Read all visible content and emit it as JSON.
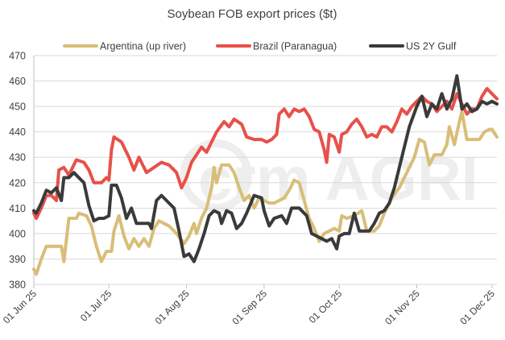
{
  "chart_data": {
    "type": "line",
    "title": "Soybean FOB export prices ($t)",
    "xlabel": "",
    "ylabel": "",
    "ylim": [
      380,
      470
    ],
    "yticks": [
      380,
      390,
      400,
      410,
      420,
      430,
      440,
      450,
      460,
      470
    ],
    "xlim": [
      "2025-06-01",
      "2025-12-03"
    ],
    "xticks": [
      {
        "date": "2025-06-01",
        "label": "01 Jun 25"
      },
      {
        "date": "2025-07-01",
        "label": "01 Jul 25"
      },
      {
        "date": "2025-08-01",
        "label": "01 Aug 25"
      },
      {
        "date": "2025-09-01",
        "label": "01 Sep 25"
      },
      {
        "date": "2025-10-01",
        "label": "01 Oct 25"
      },
      {
        "date": "2025-11-01",
        "label": "01 Nov 25"
      },
      {
        "date": "2025-12-01",
        "label": "01 Dec 25"
      }
    ],
    "grid": true,
    "legend": "top",
    "watermark": "crm AGRI",
    "series": [
      {
        "name": "Argentina (up river)",
        "color": "#D8BE78",
        "points": [
          [
            "2025-06-01",
            386
          ],
          [
            "2025-06-02",
            384
          ],
          [
            "2025-06-04",
            390
          ],
          [
            "2025-06-06",
            395
          ],
          [
            "2025-06-09",
            395
          ],
          [
            "2025-06-12",
            395
          ],
          [
            "2025-06-13",
            389
          ],
          [
            "2025-06-15",
            406
          ],
          [
            "2025-06-18",
            406
          ],
          [
            "2025-06-19",
            408
          ],
          [
            "2025-06-22",
            407
          ],
          [
            "2025-06-24",
            403
          ],
          [
            "2025-06-26",
            395
          ],
          [
            "2025-06-28",
            389
          ],
          [
            "2025-06-30",
            393
          ],
          [
            "2025-07-02",
            393
          ],
          [
            "2025-07-03",
            401
          ],
          [
            "2025-07-05",
            407
          ],
          [
            "2025-07-07",
            399
          ],
          [
            "2025-07-09",
            394
          ],
          [
            "2025-07-11",
            398
          ],
          [
            "2025-07-13",
            395
          ],
          [
            "2025-07-15",
            398
          ],
          [
            "2025-07-17",
            395
          ],
          [
            "2025-07-19",
            402
          ],
          [
            "2025-07-21",
            405
          ],
          [
            "2025-07-23",
            404
          ],
          [
            "2025-07-25",
            403
          ],
          [
            "2025-07-28",
            400
          ],
          [
            "2025-07-31",
            396
          ],
          [
            "2025-08-02",
            399
          ],
          [
            "2025-08-04",
            404
          ],
          [
            "2025-08-05",
            400
          ],
          [
            "2025-08-07",
            406
          ],
          [
            "2025-08-09",
            410
          ],
          [
            "2025-08-11",
            418
          ],
          [
            "2025-08-12",
            426
          ],
          [
            "2025-08-13",
            420
          ],
          [
            "2025-08-15",
            427
          ],
          [
            "2025-08-18",
            427
          ],
          [
            "2025-08-20",
            424
          ],
          [
            "2025-08-22",
            418
          ],
          [
            "2025-08-24",
            413
          ],
          [
            "2025-08-26",
            415
          ],
          [
            "2025-08-28",
            410
          ],
          [
            "2025-08-30",
            414
          ],
          [
            "2025-09-01",
            413
          ],
          [
            "2025-09-03",
            412
          ],
          [
            "2025-09-05",
            412
          ],
          [
            "2025-09-07",
            413
          ],
          [
            "2025-09-09",
            414
          ],
          [
            "2025-09-11",
            417
          ],
          [
            "2025-09-13",
            421
          ],
          [
            "2025-09-15",
            420
          ],
          [
            "2025-09-17",
            413
          ],
          [
            "2025-09-19",
            406
          ],
          [
            "2025-09-21",
            402
          ],
          [
            "2025-09-23",
            397
          ],
          [
            "2025-09-25",
            400
          ],
          [
            "2025-09-27",
            401
          ],
          [
            "2025-09-29",
            402
          ],
          [
            "2025-10-01",
            401
          ],
          [
            "2025-10-02",
            407
          ],
          [
            "2025-10-04",
            406
          ],
          [
            "2025-10-07",
            407
          ],
          [
            "2025-10-10",
            409
          ],
          [
            "2025-10-12",
            401
          ],
          [
            "2025-10-15",
            401
          ],
          [
            "2025-10-17",
            403
          ],
          [
            "2025-10-19",
            408
          ],
          [
            "2025-10-22",
            414
          ],
          [
            "2025-10-25",
            418
          ],
          [
            "2025-10-28",
            424
          ],
          [
            "2025-10-31",
            430
          ],
          [
            "2025-11-02",
            437
          ],
          [
            "2025-11-04",
            436
          ],
          [
            "2025-11-06",
            427
          ],
          [
            "2025-11-08",
            431
          ],
          [
            "2025-11-11",
            431
          ],
          [
            "2025-11-13",
            435
          ],
          [
            "2025-11-14",
            442
          ],
          [
            "2025-11-16",
            435
          ],
          [
            "2025-11-18",
            444
          ],
          [
            "2025-11-19",
            448
          ],
          [
            "2025-11-21",
            437
          ],
          [
            "2025-11-23",
            437
          ],
          [
            "2025-11-26",
            437
          ],
          [
            "2025-11-28",
            440
          ],
          [
            "2025-11-30",
            441
          ],
          [
            "2025-12-01",
            441
          ],
          [
            "2025-12-03",
            438
          ]
        ]
      },
      {
        "name": "Brazil (Paranagua)",
        "color": "#E8504A",
        "points": [
          [
            "2025-06-01",
            408
          ],
          [
            "2025-06-02",
            406
          ],
          [
            "2025-06-04",
            410
          ],
          [
            "2025-06-06",
            415
          ],
          [
            "2025-06-08",
            415
          ],
          [
            "2025-06-10",
            413
          ],
          [
            "2025-06-11",
            425
          ],
          [
            "2025-06-13",
            426
          ],
          [
            "2025-06-15",
            423
          ],
          [
            "2025-06-18",
            429
          ],
          [
            "2025-06-21",
            428
          ],
          [
            "2025-06-23",
            425
          ],
          [
            "2025-06-25",
            420
          ],
          [
            "2025-06-28",
            420
          ],
          [
            "2025-06-30",
            422
          ],
          [
            "2025-07-01",
            421
          ],
          [
            "2025-07-02",
            433
          ],
          [
            "2025-07-03",
            438
          ],
          [
            "2025-07-06",
            436
          ],
          [
            "2025-07-09",
            430
          ],
          [
            "2025-07-11",
            425
          ],
          [
            "2025-07-13",
            430
          ],
          [
            "2025-07-16",
            424
          ],
          [
            "2025-07-19",
            426
          ],
          [
            "2025-07-22",
            428
          ],
          [
            "2025-07-25",
            427
          ],
          [
            "2025-07-28",
            424
          ],
          [
            "2025-07-30",
            418
          ],
          [
            "2025-08-01",
            422
          ],
          [
            "2025-08-03",
            428
          ],
          [
            "2025-08-05",
            431
          ],
          [
            "2025-08-07",
            434
          ],
          [
            "2025-08-09",
            432
          ],
          [
            "2025-08-11",
            436
          ],
          [
            "2025-08-13",
            440
          ],
          [
            "2025-08-16",
            444
          ],
          [
            "2025-08-18",
            442
          ],
          [
            "2025-08-20",
            445
          ],
          [
            "2025-08-23",
            443
          ],
          [
            "2025-08-25",
            438
          ],
          [
            "2025-08-28",
            437
          ],
          [
            "2025-08-31",
            437
          ],
          [
            "2025-09-02",
            436
          ],
          [
            "2025-09-04",
            437
          ],
          [
            "2025-09-06",
            439
          ],
          [
            "2025-09-07",
            447
          ],
          [
            "2025-09-09",
            449
          ],
          [
            "2025-09-11",
            446
          ],
          [
            "2025-09-13",
            449
          ],
          [
            "2025-09-15",
            448
          ],
          [
            "2025-09-17",
            449
          ],
          [
            "2025-09-19",
            446
          ],
          [
            "2025-09-21",
            441
          ],
          [
            "2025-09-23",
            440
          ],
          [
            "2025-09-25",
            433
          ],
          [
            "2025-09-26",
            428
          ],
          [
            "2025-09-27",
            439
          ],
          [
            "2025-09-29",
            438
          ],
          [
            "2025-10-01",
            432
          ],
          [
            "2025-10-02",
            439
          ],
          [
            "2025-10-04",
            440
          ],
          [
            "2025-10-06",
            443
          ],
          [
            "2025-10-08",
            445
          ],
          [
            "2025-10-10",
            442
          ],
          [
            "2025-10-12",
            438
          ],
          [
            "2025-10-14",
            439
          ],
          [
            "2025-10-16",
            438
          ],
          [
            "2025-10-18",
            442
          ],
          [
            "2025-10-20",
            442
          ],
          [
            "2025-10-22",
            440
          ],
          [
            "2025-10-24",
            444
          ],
          [
            "2025-10-26",
            449
          ],
          [
            "2025-10-28",
            447
          ],
          [
            "2025-10-30",
            450
          ],
          [
            "2025-11-01",
            452
          ],
          [
            "2025-11-03",
            454
          ],
          [
            "2025-11-05",
            452
          ],
          [
            "2025-11-07",
            451
          ],
          [
            "2025-11-09",
            448
          ],
          [
            "2025-11-11",
            450
          ],
          [
            "2025-11-13",
            452
          ],
          [
            "2025-11-15",
            449
          ],
          [
            "2025-11-17",
            455
          ],
          [
            "2025-11-19",
            451
          ],
          [
            "2025-11-21",
            447
          ],
          [
            "2025-11-23",
            449
          ],
          [
            "2025-11-25",
            449
          ],
          [
            "2025-11-27",
            454
          ],
          [
            "2025-11-29",
            457
          ],
          [
            "2025-12-01",
            455
          ],
          [
            "2025-12-03",
            453
          ]
        ]
      },
      {
        "name": "US 2Y Gulf",
        "color": "#3A3A3A",
        "points": [
          [
            "2025-06-01",
            409
          ],
          [
            "2025-06-02",
            408
          ],
          [
            "2025-06-04",
            412
          ],
          [
            "2025-06-06",
            417
          ],
          [
            "2025-06-08",
            416
          ],
          [
            "2025-06-10",
            418
          ],
          [
            "2025-06-12",
            413
          ],
          [
            "2025-06-13",
            422
          ],
          [
            "2025-06-15",
            422
          ],
          [
            "2025-06-17",
            424
          ],
          [
            "2025-06-19",
            422
          ],
          [
            "2025-06-21",
            420
          ],
          [
            "2025-06-23",
            411
          ],
          [
            "2025-06-25",
            405
          ],
          [
            "2025-06-27",
            406
          ],
          [
            "2025-06-29",
            406
          ],
          [
            "2025-07-01",
            407
          ],
          [
            "2025-07-02",
            419
          ],
          [
            "2025-07-04",
            419
          ],
          [
            "2025-07-06",
            414
          ],
          [
            "2025-07-08",
            406
          ],
          [
            "2025-07-10",
            410
          ],
          [
            "2025-07-12",
            404
          ],
          [
            "2025-07-15",
            404
          ],
          [
            "2025-07-17",
            404
          ],
          [
            "2025-07-18",
            402
          ],
          [
            "2025-07-20",
            413
          ],
          [
            "2025-07-22",
            415
          ],
          [
            "2025-07-25",
            412
          ],
          [
            "2025-07-27",
            410
          ],
          [
            "2025-07-29",
            401
          ],
          [
            "2025-07-31",
            391
          ],
          [
            "2025-08-02",
            392
          ],
          [
            "2025-08-04",
            389
          ],
          [
            "2025-08-06",
            394
          ],
          [
            "2025-08-08",
            400
          ],
          [
            "2025-08-10",
            407
          ],
          [
            "2025-08-12",
            409
          ],
          [
            "2025-08-14",
            408
          ],
          [
            "2025-08-15",
            404
          ],
          [
            "2025-08-17",
            409
          ],
          [
            "2025-08-19",
            408
          ],
          [
            "2025-08-21",
            402
          ],
          [
            "2025-08-23",
            404
          ],
          [
            "2025-08-25",
            408
          ],
          [
            "2025-08-28",
            415
          ],
          [
            "2025-08-31",
            414
          ],
          [
            "2025-09-01",
            409
          ],
          [
            "2025-09-03",
            403
          ],
          [
            "2025-09-05",
            406
          ],
          [
            "2025-09-08",
            407
          ],
          [
            "2025-09-10",
            404
          ],
          [
            "2025-09-12",
            410
          ],
          [
            "2025-09-15",
            410
          ],
          [
            "2025-09-18",
            407
          ],
          [
            "2025-09-20",
            400
          ],
          [
            "2025-09-22",
            399
          ],
          [
            "2025-09-24",
            398
          ],
          [
            "2025-09-26",
            397
          ],
          [
            "2025-09-28",
            398
          ],
          [
            "2025-09-30",
            394
          ],
          [
            "2025-10-01",
            399
          ],
          [
            "2025-10-03",
            400
          ],
          [
            "2025-10-05",
            400
          ],
          [
            "2025-10-07",
            408
          ],
          [
            "2025-10-09",
            401
          ],
          [
            "2025-10-11",
            401
          ],
          [
            "2025-10-13",
            401
          ],
          [
            "2025-10-15",
            404
          ],
          [
            "2025-10-17",
            408
          ],
          [
            "2025-10-19",
            409
          ],
          [
            "2025-10-21",
            412
          ],
          [
            "2025-10-23",
            418
          ],
          [
            "2025-10-26",
            430
          ],
          [
            "2025-10-29",
            442
          ],
          [
            "2025-11-01",
            450
          ],
          [
            "2025-11-03",
            454
          ],
          [
            "2025-11-05",
            446
          ],
          [
            "2025-11-07",
            451
          ],
          [
            "2025-11-09",
            449
          ],
          [
            "2025-11-11",
            455
          ],
          [
            "2025-11-13",
            449
          ],
          [
            "2025-11-15",
            453
          ],
          [
            "2025-11-17",
            462
          ],
          [
            "2025-11-19",
            449
          ],
          [
            "2025-11-21",
            451
          ],
          [
            "2025-11-23",
            448
          ],
          [
            "2025-11-25",
            449
          ],
          [
            "2025-11-27",
            452
          ],
          [
            "2025-11-29",
            451
          ],
          [
            "2025-12-01",
            452
          ],
          [
            "2025-12-03",
            451
          ]
        ]
      }
    ]
  }
}
